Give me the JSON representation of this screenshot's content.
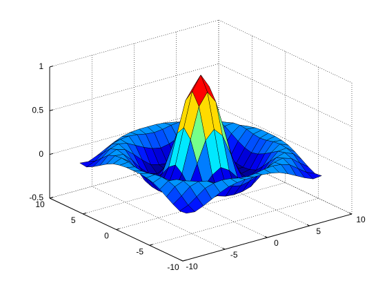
{
  "chart_data": {
    "type": "surface",
    "x": [
      -8,
      -7,
      -6,
      -5,
      -4,
      -3,
      -2,
      -1,
      0,
      1,
      2,
      3,
      4,
      5,
      6,
      7,
      8
    ],
    "y": [
      -8,
      -7,
      -6,
      -5,
      -4,
      -3,
      -2,
      -1,
      0,
      1,
      2,
      3,
      4,
      5,
      6,
      7,
      8
    ],
    "z": [
      [
        -0.08,
        -0.09,
        -0.05,
        0,
        0.05,
        0.09,
        0.11,
        0.12,
        0.12,
        0.12,
        0.11,
        0.09,
        0.05,
        0,
        -0.05,
        -0.09,
        -0.08
      ],
      [
        -0.09,
        -0.05,
        0.02,
        0.09,
        0.12,
        0.13,
        0.12,
        0.1,
        0.09,
        0.1,
        0.12,
        0.13,
        0.12,
        0.09,
        0.02,
        -0.05,
        -0.09
      ],
      [
        -0.05,
        0.02,
        0.1,
        0.13,
        0.11,
        0.06,
        0.01,
        -0.03,
        -0.05,
        -0.03,
        0.01,
        0.06,
        0.11,
        0.13,
        0.1,
        0.02,
        -0.05
      ],
      [
        0,
        0.09,
        0.13,
        0.1,
        0.02,
        -0.07,
        -0.15,
        -0.18,
        -0.19,
        -0.18,
        -0.15,
        -0.07,
        0.02,
        0.1,
        0.13,
        0.09,
        0
      ],
      [
        0.05,
        0.12,
        0.11,
        0.02,
        -0.1,
        -0.19,
        -0.22,
        -0.2,
        -0.19,
        -0.2,
        -0.22,
        -0.19,
        -0.1,
        0.02,
        0.11,
        0.12,
        0.05
      ],
      [
        0.09,
        0.13,
        0.06,
        -0.07,
        -0.19,
        -0.21,
        -0.12,
        -0.01,
        0.05,
        -0.01,
        -0.12,
        -0.21,
        -0.19,
        -0.07,
        0.06,
        0.13,
        0.09
      ],
      [
        0.11,
        0.12,
        0.01,
        -0.15,
        -0.22,
        -0.12,
        0.11,
        0.35,
        0.45,
        0.35,
        0.11,
        -0.12,
        -0.22,
        -0.15,
        0.01,
        0.12,
        0.11
      ],
      [
        0.12,
        0.1,
        -0.03,
        -0.18,
        -0.2,
        -0.01,
        0.35,
        0.7,
        0.84,
        0.7,
        0.35,
        -0.01,
        -0.2,
        -0.18,
        -0.03,
        0.1,
        0.12
      ],
      [
        0.12,
        0.09,
        -0.05,
        -0.19,
        -0.19,
        0.05,
        0.45,
        0.84,
        1,
        0.84,
        0.45,
        0.05,
        -0.19,
        -0.19,
        -0.05,
        0.09,
        0.12
      ],
      [
        0.12,
        0.1,
        -0.03,
        -0.18,
        -0.2,
        -0.01,
        0.35,
        0.7,
        0.84,
        0.7,
        0.35,
        -0.01,
        -0.2,
        -0.18,
        -0.03,
        0.1,
        0.12
      ],
      [
        0.11,
        0.12,
        0.01,
        -0.15,
        -0.22,
        -0.12,
        0.11,
        0.35,
        0.45,
        0.35,
        0.11,
        -0.12,
        -0.22,
        -0.15,
        0.01,
        0.12,
        0.11
      ],
      [
        0.09,
        0.13,
        0.06,
        -0.07,
        -0.19,
        -0.21,
        -0.12,
        -0.01,
        0.05,
        -0.01,
        -0.12,
        -0.21,
        -0.19,
        -0.07,
        0.06,
        0.13,
        0.09
      ],
      [
        0.05,
        0.12,
        0.11,
        0.02,
        -0.1,
        -0.19,
        -0.22,
        -0.2,
        -0.19,
        -0.2,
        -0.22,
        -0.19,
        -0.1,
        0.02,
        0.11,
        0.12,
        0.05
      ],
      [
        0,
        0.09,
        0.13,
        0.1,
        0.02,
        -0.07,
        -0.15,
        -0.18,
        -0.19,
        -0.18,
        -0.15,
        -0.07,
        0.02,
        0.1,
        0.13,
        0.09,
        0
      ],
      [
        -0.05,
        0.02,
        0.1,
        0.13,
        0.11,
        0.06,
        0.01,
        -0.03,
        -0.05,
        -0.03,
        0.01,
        0.06,
        0.11,
        0.13,
        0.1,
        0.02,
        -0.05
      ],
      [
        -0.09,
        -0.05,
        0.02,
        0.09,
        0.12,
        0.13,
        0.12,
        0.1,
        0.09,
        0.1,
        0.12,
        0.13,
        0.12,
        0.09,
        0.02,
        -0.05,
        -0.09
      ],
      [
        -0.08,
        -0.09,
        -0.05,
        0,
        0.05,
        0.09,
        0.11,
        0.12,
        0.12,
        0.12,
        0.11,
        0.09,
        0.05,
        0,
        -0.05,
        -0.09,
        -0.08
      ]
    ],
    "xlim": [
      -10,
      10
    ],
    "ylim": [
      -10,
      10
    ],
    "zlim": [
      -0.5,
      1
    ],
    "xticks": [
      -10,
      -5,
      0,
      5,
      10
    ],
    "yticks": [
      -10,
      -5,
      0,
      5,
      10
    ],
    "zticks": [
      -0.5,
      0,
      0.5,
      1
    ],
    "grid": true,
    "colormap": "jet"
  }
}
